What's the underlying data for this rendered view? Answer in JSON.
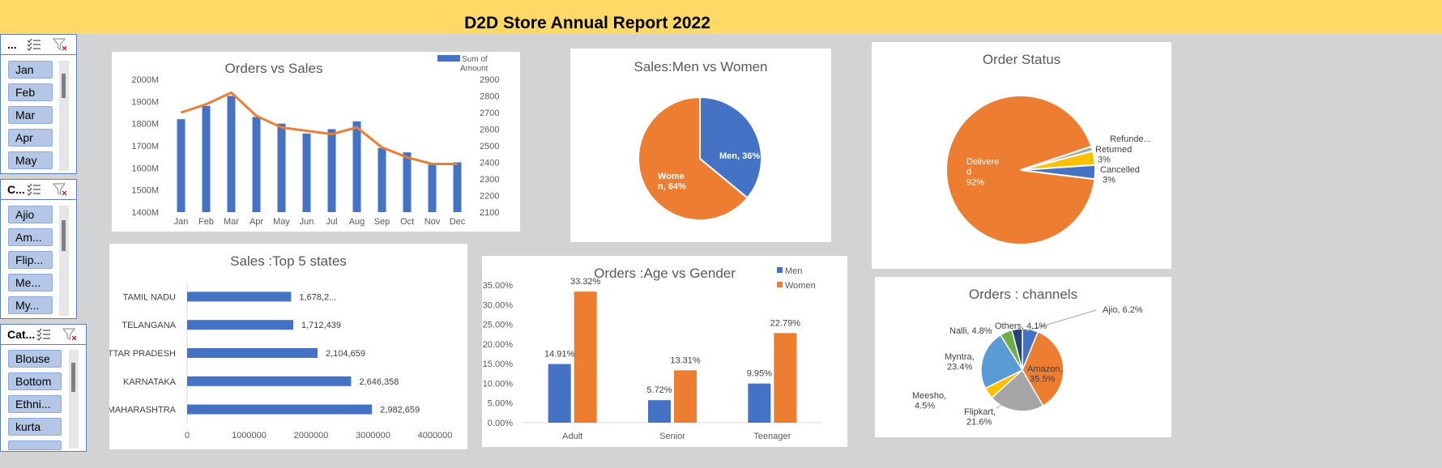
{
  "header": {
    "title": "D2D Store Annual Report 2022"
  },
  "slicers": [
    {
      "title": "...",
      "items": [
        "Jan",
        "Feb",
        "Mar",
        "Apr",
        "May"
      ]
    },
    {
      "title": "C...",
      "items": [
        "Ajio",
        "Am...",
        "Flip...",
        "Me...",
        "My..."
      ]
    },
    {
      "title": "Cat...",
      "items": [
        "Blouse",
        "Bottom",
        "Ethni...",
        "kurta"
      ]
    }
  ],
  "colors": {
    "blue": "#4472c4",
    "orange": "#ed7d31",
    "gray": "#a5a5a5",
    "yellow": "#ffc000",
    "lightblue": "#5b9bd5",
    "green": "#70ad47",
    "navy": "#264478"
  },
  "charts": {
    "orders_sales": {
      "title": "Orders vs Sales",
      "legend": "Sum of Amount"
    },
    "men_women": {
      "title": "Sales:Men vs Women"
    },
    "order_status": {
      "title": "Order Status"
    },
    "top_states": {
      "title": "Sales :Top 5 states"
    },
    "age_gender": {
      "title": "Orders :Age vs Gender"
    },
    "channels": {
      "title": "Orders : channels"
    }
  },
  "chart_data": [
    {
      "type": "bar",
      "title": "Orders vs Sales",
      "categories": [
        "Jan",
        "Feb",
        "Mar",
        "Apr",
        "May",
        "Jun",
        "Jul",
        "Aug",
        "Sep",
        "Oct",
        "Nov",
        "Dec"
      ],
      "series": [
        {
          "name": "Sum of Amount",
          "type": "bar",
          "axis": "left",
          "values": [
            1820,
            1880,
            1925,
            1830,
            1800,
            1755,
            1775,
            1810,
            1690,
            1670,
            1615,
            1625
          ]
        },
        {
          "type": "line",
          "axis": "right",
          "values": [
            2700,
            2750,
            2820,
            2680,
            2610,
            2590,
            2570,
            2610,
            2490,
            2430,
            2390,
            2390
          ]
        }
      ],
      "left_ticks": [
        "1400M",
        "1500M",
        "1600M",
        "1700M",
        "1800M",
        "1900M",
        "2000M"
      ],
      "ylim_left": [
        1400,
        2000
      ],
      "right_ticks": [
        "2100",
        "2200",
        "2300",
        "2400",
        "2500",
        "2600",
        "2700",
        "2800",
        "2900"
      ],
      "ylim_right": [
        2100,
        2900
      ]
    },
    {
      "type": "pie",
      "title": "Sales:Men vs Women",
      "slices": [
        {
          "label": "Men, 36%",
          "value": 36
        },
        {
          "label": "Wome n, 64%",
          "value": 64
        }
      ]
    },
    {
      "type": "pie",
      "title": "Order Status",
      "slices": [
        {
          "label": "Delivere d 92%",
          "value": 92
        },
        {
          "label": "Refunde...",
          "value": 1
        },
        {
          "label": "Returned 3%",
          "value": 3
        },
        {
          "label": "Cancelled 3%",
          "value": 3
        }
      ]
    },
    {
      "type": "bar",
      "orientation": "horizontal",
      "title": "Sales :Top 5 states",
      "categories": [
        "TAMIL NADU",
        "TELANGANA",
        "UTTAR PRADESH",
        "KARNATAKA",
        "MAHARASHTRA"
      ],
      "values": [
        1678200,
        1712439,
        2104659,
        2646358,
        2982659
      ],
      "labels": [
        "1,678,2...",
        "1,712,439",
        "2,104,659",
        "2,646,358",
        "2,982,659"
      ],
      "x_ticks": [
        "0",
        "1000000",
        "2000000",
        "3000000",
        "4000000"
      ],
      "xlim": [
        0,
        4000000
      ]
    },
    {
      "type": "bar",
      "title": "Orders :Age vs Gender",
      "categories": [
        "Adult",
        "Senior",
        "Teenager"
      ],
      "series": [
        {
          "name": "Men",
          "values": [
            14.91,
            5.72,
            9.95
          ],
          "labels": [
            "14.91%",
            "5.72%",
            "9.95%"
          ]
        },
        {
          "name": "Women",
          "values": [
            33.32,
            13.31,
            22.79
          ],
          "labels": [
            "33.32%",
            "13.31%",
            "22.79%"
          ]
        }
      ],
      "y_ticks": [
        "0.00%",
        "5.00%",
        "10.00%",
        "15.00%",
        "20.00%",
        "25.00%",
        "30.00%",
        "35.00%"
      ],
      "ylim": [
        0,
        35
      ]
    },
    {
      "type": "pie",
      "title": "Orders : channels",
      "slices": [
        {
          "label": "Ajio, 6.2%",
          "value": 6.2
        },
        {
          "label": "Amazon, 35.5%",
          "value": 35.5
        },
        {
          "label": "Flipkart, 21.6%",
          "value": 21.6
        },
        {
          "label": "Meesho, 4.5%",
          "value": 4.5
        },
        {
          "label": "Myntra, 23.4%",
          "value": 23.4
        },
        {
          "label": "Nalli, 4.8%",
          "value": 4.8
        },
        {
          "label": "Others, 4.1%",
          "value": 4.1
        }
      ]
    }
  ]
}
